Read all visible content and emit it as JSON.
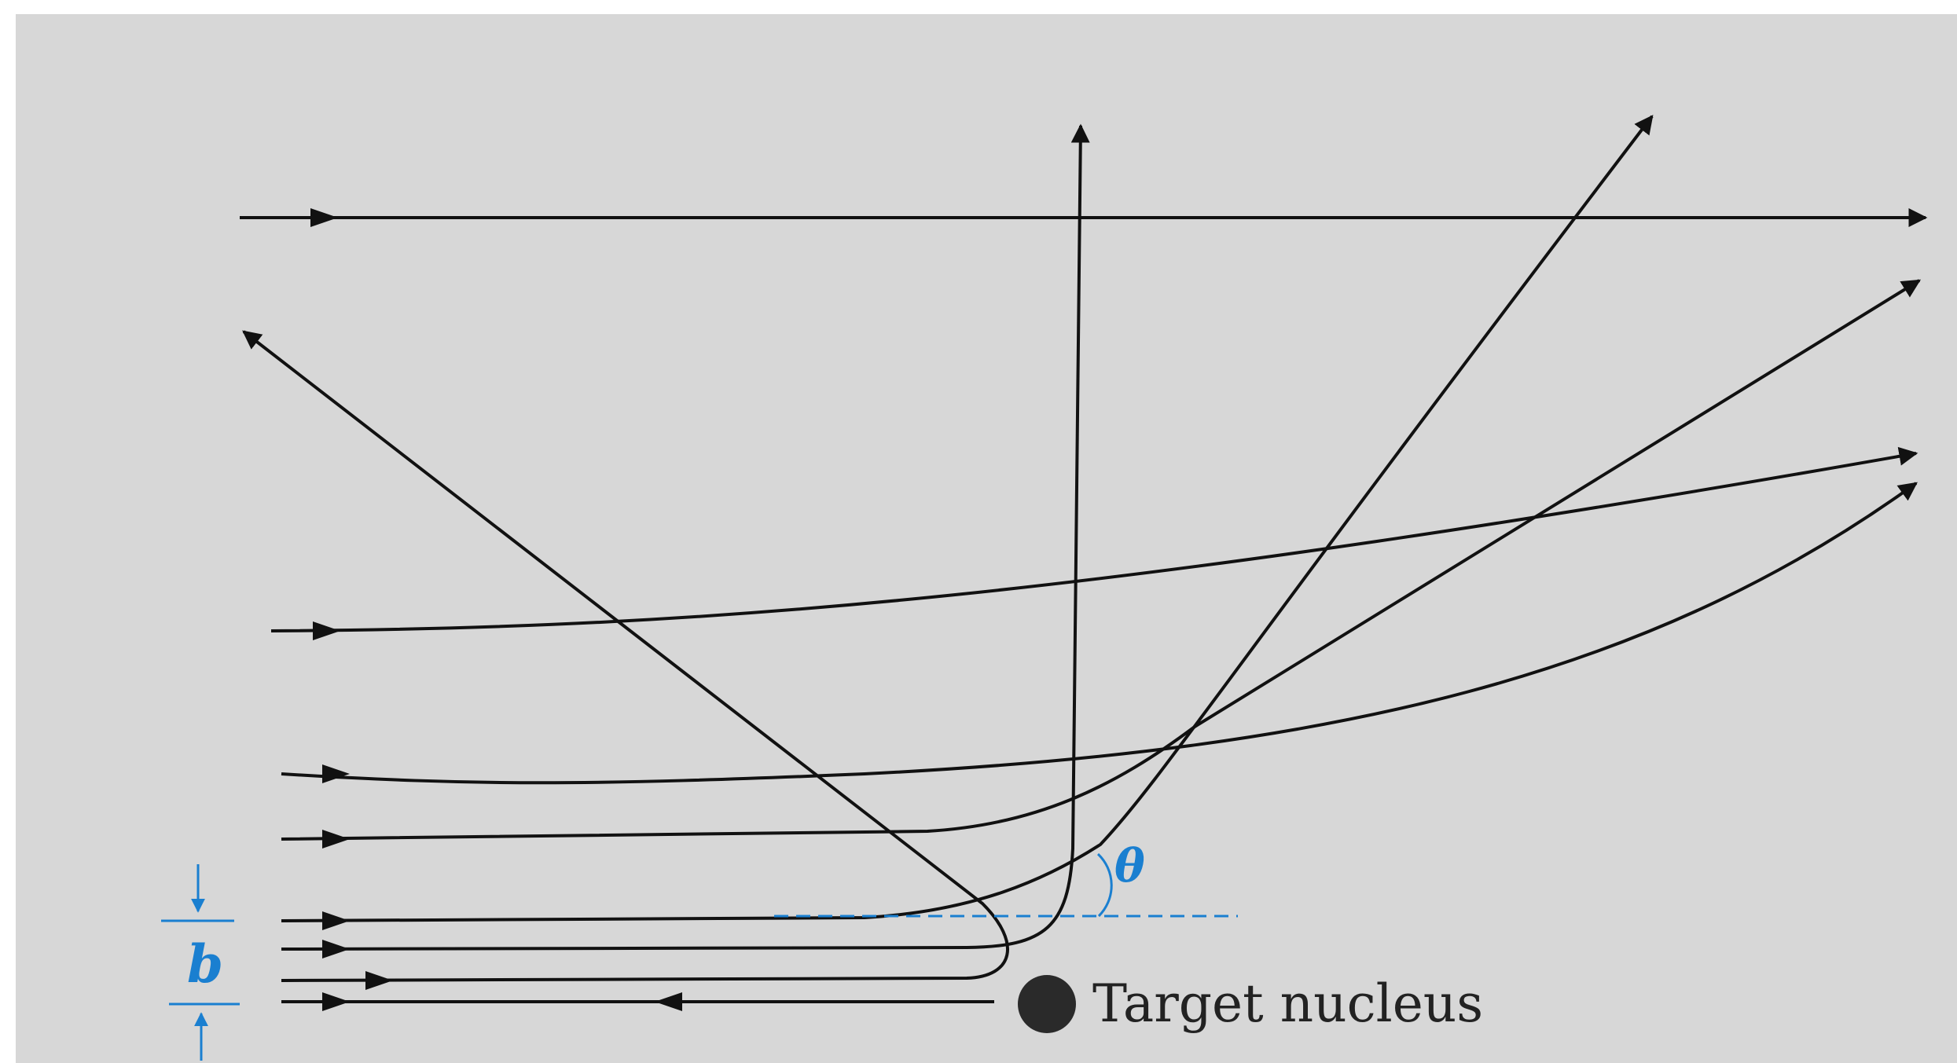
{
  "labels": {
    "target": "Target nucleus",
    "impact_parameter": "b",
    "angle": "θ"
  },
  "colors": {
    "background": "#d7d7d7",
    "ink": "#111111",
    "accent": "#1a7fd0"
  }
}
